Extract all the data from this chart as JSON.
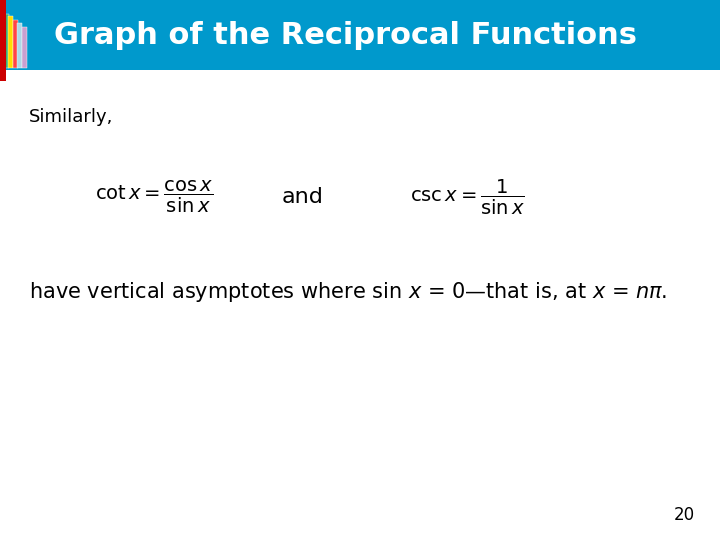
{
  "title": "Graph of the Reciprocal Functions",
  "title_bg_color": "#0099CC",
  "title_text_color": "#FFFFFF",
  "title_fontsize": 22,
  "body_bg_color": "#FFFFFF",
  "similarly_text": "Similarly,",
  "and_text": "and",
  "page_number": "20",
  "similarly_fontsize": 13,
  "body_fontsize": 15,
  "formula_fontsize": 14,
  "page_fontsize": 12,
  "title_bar_height": 0.13,
  "book_colors": [
    "#3CB371",
    "#FFDD00",
    "#FF4444",
    "#ADD8E6",
    "#C8A0D0"
  ],
  "red_ribbon_color": "#CC0000"
}
